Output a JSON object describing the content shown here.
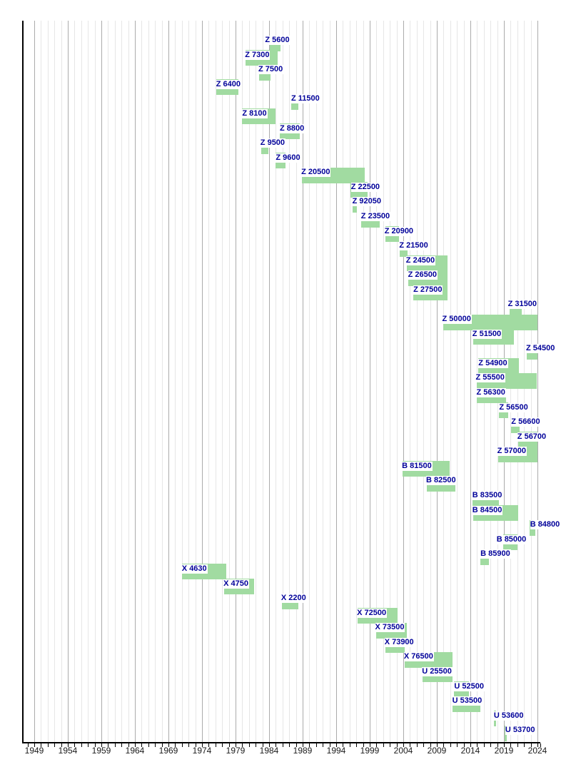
{
  "page": {
    "background": "#ffffff",
    "title": ""
  },
  "chart_data": {
    "type": "bar",
    "subtype": "horizontal-timeline-gantt",
    "title": "",
    "xlabel": "",
    "ylabel": "",
    "x_axis": {
      "start_year": 1949,
      "end_year": 2024,
      "minor_tick_interval_years": 1,
      "labeled_tick_interval_years": 5,
      "tick_labels": [
        "1949",
        "1954",
        "1959",
        "1964",
        "1969",
        "1974",
        "1979",
        "1984",
        "1989",
        "1994",
        "1999",
        "2004",
        "2009",
        "2014",
        "2019",
        "2024"
      ]
    },
    "grid": {
      "vertical_minor": true,
      "vertical_major": true
    },
    "legend_position": "none",
    "series": [
      {
        "label": "Z 5600",
        "from": 1984.1,
        "till": 1985.7,
        "label_at": 1983.4
      },
      {
        "label": "Z 7300",
        "from": 1980.5,
        "till": 1985.3,
        "label_at": 1980.4
      },
      {
        "label": "Z 7500",
        "from": 1982.5,
        "till": 1984.2,
        "label_at": 1982.4
      },
      {
        "label": "Z 6400",
        "from": 1976.1,
        "till": 1979.4,
        "label_at": 1976.1
      },
      {
        "label": "Z 11500",
        "from": 1987.3,
        "till": 1988.4,
        "label_at": 1987.3
      },
      {
        "label": "Z 8100",
        "from": 1979.9,
        "till": 1985.0,
        "label_at": 1980.0
      },
      {
        "label": "Z 8800",
        "from": 1985.6,
        "till": 1988.6,
        "label_at": 1985.6
      },
      {
        "label": "Z 9500",
        "from": 1982.8,
        "till": 1983.9,
        "label_at": 1982.7
      },
      {
        "label": "Z 9600",
        "from": 1985.0,
        "till": 1986.5,
        "label_at": 1985.0
      },
      {
        "label": "Z 20500",
        "from": 1988.9,
        "till": 1998.3,
        "label_at": 1988.8
      },
      {
        "label": "Z 22500",
        "from": 1996.1,
        "till": 1998.7,
        "label_at": 1996.2
      },
      {
        "label": "Z 92050",
        "from": 1996.4,
        "till": 1997.1,
        "label_at": 1996.4
      },
      {
        "label": "Z 23500",
        "from": 1997.7,
        "till": 2000.5,
        "label_at": 1997.7
      },
      {
        "label": "Z 20900",
        "from": 2001.3,
        "till": 2003.4,
        "label_at": 2001.2
      },
      {
        "label": "Z 21500",
        "from": 2003.5,
        "till": 2004.6,
        "label_at": 2003.4
      },
      {
        "label": "Z 24500",
        "from": 2004.5,
        "till": 2010.6,
        "label_at": 2004.4
      },
      {
        "label": "Z 26500",
        "from": 2004.7,
        "till": 2010.6,
        "label_at": 2004.7
      },
      {
        "label": "Z 27500",
        "from": 2005.5,
        "till": 2010.6,
        "label_at": 2005.5
      },
      {
        "label": "Z 31500",
        "from": 2019.8,
        "till": 2021.7,
        "label_at": 2019.6
      },
      {
        "label": "Z 50000",
        "from": 2009.9,
        "till": 2024.0,
        "label_at": 2009.8
      },
      {
        "label": "Z 51500",
        "from": 2014.4,
        "till": 2020.5,
        "label_at": 2014.3
      },
      {
        "label": "Z 54500",
        "from": 2022.4,
        "till": 2024.0,
        "label_at": 2022.3
      },
      {
        "label": "Z 54900",
        "from": 2015.2,
        "till": 2021.2,
        "label_at": 2015.2
      },
      {
        "label": "Z 55500",
        "from": 2014.9,
        "till": 2023.9,
        "label_at": 2014.8
      },
      {
        "label": "Z 56300",
        "from": 2014.9,
        "till": 2019.3,
        "label_at": 2014.9
      },
      {
        "label": "Z 56500",
        "from": 2018.3,
        "till": 2019.6,
        "label_at": 2018.3
      },
      {
        "label": "Z 56600",
        "from": 2020.1,
        "till": 2021.4,
        "label_at": 2020.1
      },
      {
        "label": "Z 56700",
        "from": 2021.1,
        "till": 2024.0,
        "label_at": 2021.0
      },
      {
        "label": "Z 57000",
        "from": 2018.1,
        "till": 2024.0,
        "label_at": 2018.0
      },
      {
        "label": "B 81500",
        "from": 2003.9,
        "till": 2010.9,
        "label_at": 2003.8
      },
      {
        "label": "B 82500",
        "from": 2007.5,
        "till": 2011.8,
        "label_at": 2007.4
      },
      {
        "label": "B 83500",
        "from": 2014.3,
        "till": 2018.3,
        "label_at": 2014.3
      },
      {
        "label": "B 84500",
        "from": 2014.4,
        "till": 2021.1,
        "label_at": 2014.3
      },
      {
        "label": "B 84800",
        "from": 2022.8,
        "till": 2023.7,
        "label_at": 2022.9
      },
      {
        "label": "B 85000",
        "from": 2018.9,
        "till": 2021.0,
        "label_at": 2017.9
      },
      {
        "label": "B 85900",
        "from": 2015.5,
        "till": 2016.8,
        "label_at": 2015.5
      },
      {
        "label": "X 4630",
        "from": 1971.0,
        "till": 1977.6,
        "label_at": 1971.0
      },
      {
        "label": "X 4750",
        "from": 1977.3,
        "till": 1981.8,
        "label_at": 1977.2
      },
      {
        "label": "X 2200",
        "from": 1985.9,
        "till": 1988.4,
        "label_at": 1985.8
      },
      {
        "label": "X 72500",
        "from": 1997.2,
        "till": 2003.1,
        "label_at": 1997.1
      },
      {
        "label": "X 73500",
        "from": 1999.9,
        "till": 2004.5,
        "label_at": 1999.8
      },
      {
        "label": "X 73900",
        "from": 2001.3,
        "till": 2004.2,
        "label_at": 2001.2
      },
      {
        "label": "X 76500",
        "from": 2004.2,
        "till": 2011.3,
        "label_at": 2004.1
      },
      {
        "label": "U 25500",
        "from": 2006.9,
        "till": 2011.3,
        "label_at": 2006.8
      },
      {
        "label": "U 52500",
        "from": 2011.6,
        "till": 2013.8,
        "label_at": 2011.6
      },
      {
        "label": "U 53500",
        "from": 2011.3,
        "till": 2015.5,
        "label_at": 2011.3
      },
      {
        "label": "U 53600",
        "from": 2017.5,
        "till": 2017.8,
        "label_at": 2017.5
      },
      {
        "label": "U 53700",
        "from": 2019.1,
        "till": 2019.4,
        "label_at": 2019.2
      }
    ],
    "colors": {
      "bar": "#a1dba1",
      "series_label_text": "#000099",
      "series_label_background": "#ffffff",
      "axis": "#000000",
      "grid_minor": "#e6e6e6",
      "grid_major": "#ababab",
      "axis_label_text": "#1a1a1a",
      "background": "#ffffff"
    }
  }
}
